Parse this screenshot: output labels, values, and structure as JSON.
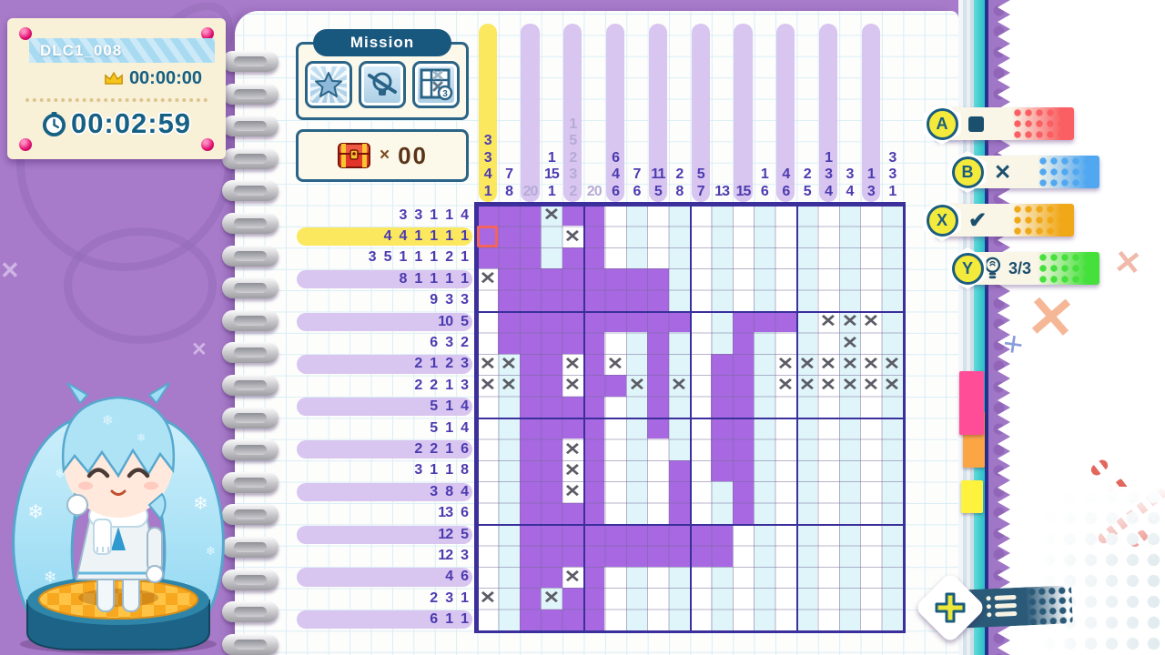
{
  "hud": {
    "level_id": "DLC1_008",
    "best_time": "00:00:00",
    "current_time": "00:02:59"
  },
  "mission": {
    "title": "Mission",
    "icons": [
      "star-clear-icon",
      "no-hint-icon",
      "mistake-limit-icon"
    ],
    "mistake_limit_badge": "3"
  },
  "treasure": {
    "times_label": "×",
    "count": "00"
  },
  "action_tabs": [
    {
      "button": "A",
      "action": "fill-square",
      "color": "#f95f63"
    },
    {
      "button": "B",
      "action": "mark-x",
      "color": "#52a8f0"
    },
    {
      "button": "X",
      "action": "check",
      "color": "#f0a818"
    },
    {
      "button": "Y",
      "action": "hint",
      "color": "#46e03c",
      "hints_left": "3/3"
    }
  ],
  "puzzle": {
    "size": 20,
    "cursor_row": 2,
    "cursor_col": 1,
    "col_hints": [
      [
        3,
        3,
        4,
        1
      ],
      [
        7,
        8
      ],
      [
        20
      ],
      [
        1,
        15,
        1
      ],
      [
        1,
        5,
        2,
        3,
        2
      ],
      [
        20
      ],
      [
        6,
        4,
        6
      ],
      [
        7,
        6
      ],
      [
        11,
        5
      ],
      [
        2,
        8
      ],
      [
        5,
        7
      ],
      [
        13
      ],
      [
        15
      ],
      [
        1,
        6
      ],
      [
        4,
        6
      ],
      [
        2,
        5
      ],
      [
        1,
        3,
        4
      ],
      [
        3,
        4
      ],
      [
        1,
        3
      ],
      [
        3,
        3,
        1
      ]
    ],
    "col_hints_done": [
      false,
      false,
      true,
      false,
      true,
      true,
      false,
      false,
      false,
      false,
      false,
      false,
      false,
      false,
      false,
      false,
      false,
      false,
      false,
      false
    ],
    "row_hints": [
      [
        3,
        3,
        1,
        1,
        4
      ],
      [
        4,
        4,
        1,
        1,
        1,
        1
      ],
      [
        3,
        5,
        1,
        1,
        1,
        2,
        1
      ],
      [
        8,
        1,
        1,
        1,
        1
      ],
      [
        9,
        3,
        3
      ],
      [
        10,
        5
      ],
      [
        6,
        3,
        2
      ],
      [
        2,
        1,
        2,
        3
      ],
      [
        2,
        2,
        1,
        3
      ],
      [
        5,
        1,
        4
      ],
      [
        5,
        1,
        4
      ],
      [
        2,
        2,
        1,
        6
      ],
      [
        3,
        1,
        1,
        8
      ],
      [
        3,
        8,
        4
      ],
      [
        13,
        6
      ],
      [
        12,
        5
      ],
      [
        12,
        3
      ],
      [
        4,
        6
      ],
      [
        2,
        3,
        1
      ],
      [
        6,
        1,
        1
      ]
    ],
    "cells": [
      "11121100000000000000",
      "11102100000000000000",
      "11101100000000000000",
      "21111111100000000000",
      "01111111100000000000",
      "01111111110011102220",
      "01111100100010000200",
      "22112120100110222222",
      "22112112120110222222",
      "00111100100110000000",
      "00111100100110000000",
      "00112100000110000000",
      "00112100010110000000",
      "00112100010010000000",
      "00111100010010000000",
      "00111111111100000000",
      "00111111111100000000",
      "00112100000000000000",
      "20121100000000000000",
      "00111100000000000000"
    ],
    "legend": "0=empty 1=filled 2=x-mark"
  },
  "colors": {
    "filled_cell": "#a868e2",
    "empty_even_col": "#e0f5fa",
    "hint_text": "#4c3bb0",
    "hint_done_text": "#b5abd6",
    "hint_band": "#d8c5f0",
    "cursor_band": "#fbe85e",
    "cursor_outline": "#f4645c",
    "group_line": "#3a2f9b",
    "background": "#a77bc9",
    "panel_border": "#2b6487",
    "timer_text": "#176084"
  }
}
